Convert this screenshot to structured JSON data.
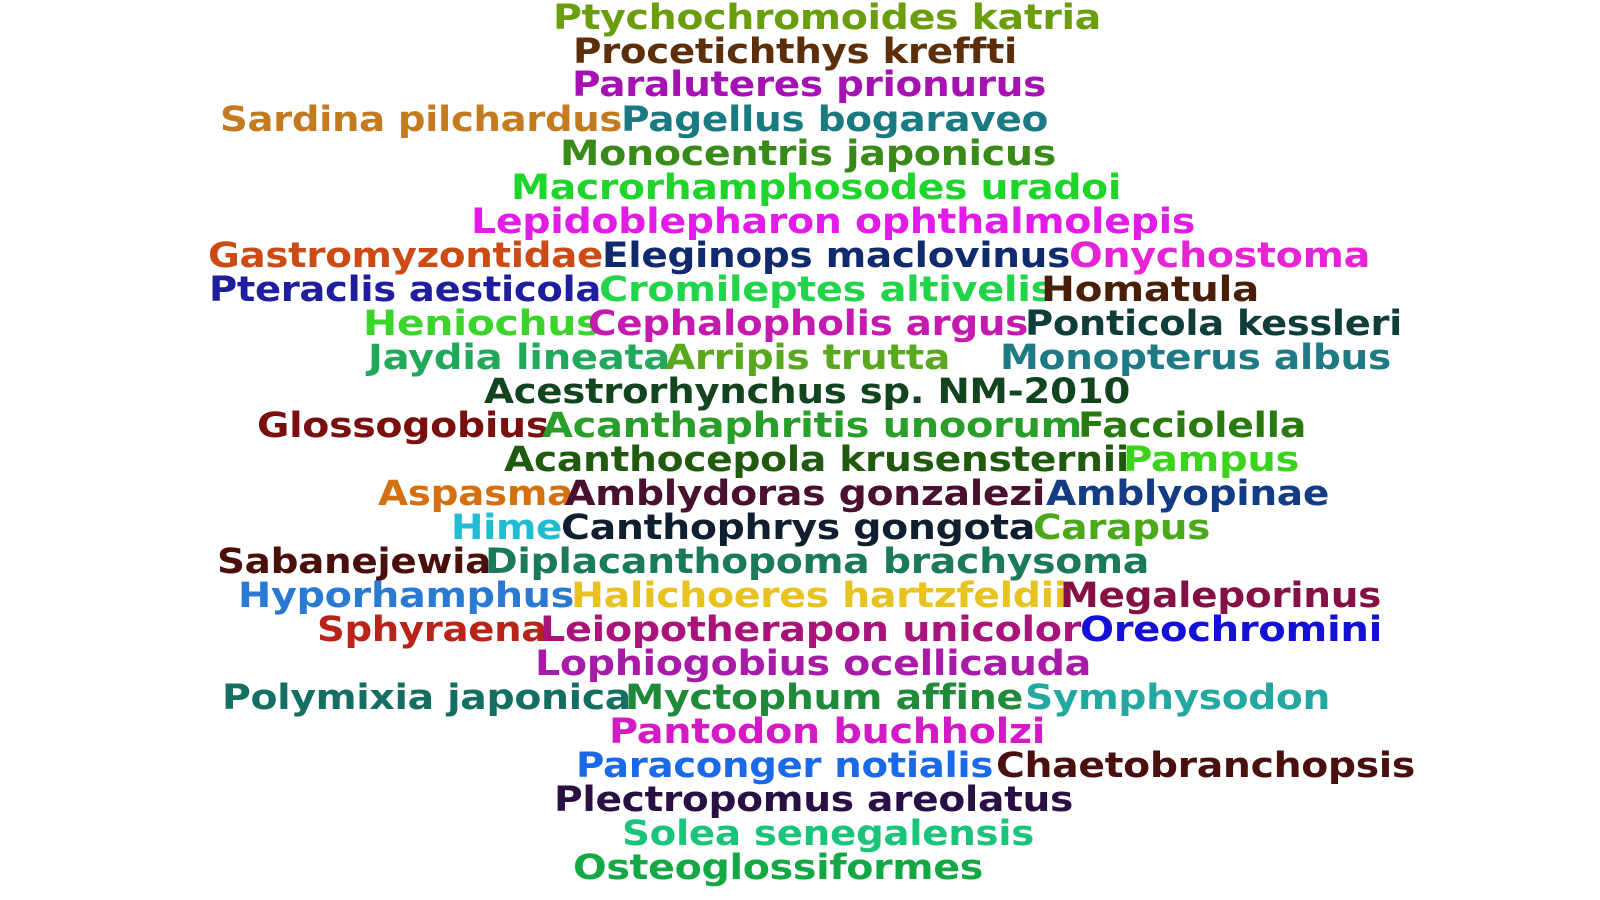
{
  "words": [
    {
      "text": "Ptychochromoides katria",
      "color": "#6b9e0f"
    },
    {
      "text": "Procetichthys kreffti",
      "color": "#5c2e09"
    },
    {
      "text": "Paraluteres prionurus",
      "color": "#a611b3"
    },
    {
      "text": "Sardina pilchardus",
      "color": "#c47a1f"
    },
    {
      "text": "Pagellus bogaraveo",
      "color": "#1a7a82"
    },
    {
      "text": "Monocentris japonicus",
      "color": "#3a8a1a"
    },
    {
      "text": "Macrorhamphosodes uradoi",
      "color": "#1fd42a"
    },
    {
      "text": "Lepidoblepharon ophthalmolepis",
      "color": "#e21be8"
    },
    {
      "text": "Gastromyzontidae",
      "color": "#cc4a14"
    },
    {
      "text": "Eleginops maclovinus",
      "color": "#102a6e"
    },
    {
      "text": "Onychostoma",
      "color": "#e624d6"
    },
    {
      "text": "Pteraclis aesticola",
      "color": "#1e1e9e"
    },
    {
      "text": "Cromileptes altivelis",
      "color": "#22d44a"
    },
    {
      "text": "Homatula",
      "color": "#4a1f0a"
    },
    {
      "text": "Heniochus",
      "color": "#3ad42a"
    },
    {
      "text": "Cephalopholis argus",
      "color": "#c41ab0"
    },
    {
      "text": "Ponticola kessleri",
      "color": "#0f3d3a"
    },
    {
      "text": "Jaydia lineata",
      "color": "#22a85a"
    },
    {
      "text": "Arripis trutta",
      "color": "#5aa81f"
    },
    {
      "text": "Monopterus albus",
      "color": "#1f7a85"
    },
    {
      "text": "Acestrorhynchus sp. NM-2010",
      "color": "#12451f"
    },
    {
      "text": "Glossogobius",
      "color": "#7a0f0f"
    },
    {
      "text": "Acanthaphritis unoorum",
      "color": "#2a9e2a"
    },
    {
      "text": "Facciolella",
      "color": "#2a7a12"
    },
    {
      "text": "Acanthocepola krusensternii",
      "color": "#1f5a0f"
    },
    {
      "text": "Pampus",
      "color": "#3ad41a"
    },
    {
      "text": "Aspasma",
      "color": "#d4700f"
    },
    {
      "text": "Amblydoras gonzalezi",
      "color": "#4a1030"
    },
    {
      "text": "Amblyopinae",
      "color": "#143c85"
    },
    {
      "text": "Hime",
      "color": "#1fbcd4"
    },
    {
      "text": "Canthophrys gongota",
      "color": "#0f1f30"
    },
    {
      "text": "Carapus",
      "color": "#4aa81a"
    },
    {
      "text": "Sabanejewia",
      "color": "#4a0f0a"
    },
    {
      "text": "Diplacanthopoma brachysoma",
      "color": "#1a7a5a"
    },
    {
      "text": "Hyporhamphus",
      "color": "#2a7ad4"
    },
    {
      "text": "Halichoeres hartzfeldii",
      "color": "#e8c21f"
    },
    {
      "text": "Megaleporinus",
      "color": "#851045"
    },
    {
      "text": "Sphyraena",
      "color": "#b8241a"
    },
    {
      "text": "Leiopotherapon unicolor",
      "color": "#a8147a"
    },
    {
      "text": "Oreochromini",
      "color": "#1410d4"
    },
    {
      "text": "Lophiogobius ocellicauda",
      "color": "#a81aa8"
    },
    {
      "text": "Polymixia japonica",
      "color": "#146e62"
    },
    {
      "text": "Myctophum affine",
      "color": "#1f8a3a"
    },
    {
      "text": "Symphysodon",
      "color": "#22a8a0"
    },
    {
      "text": "Pantodon buchholzi",
      "color": "#d41ac4"
    },
    {
      "text": "Paraconger notialis",
      "color": "#1a6ae8"
    },
    {
      "text": "Chaetobranchopsis",
      "color": "#4a0f0f"
    },
    {
      "text": "Plectropomus areolatus",
      "color": "#2a0f45"
    },
    {
      "text": "Solea senegalensis",
      "color": "#1ac47a"
    },
    {
      "text": "Osteoglossiformes",
      "color": "#14a845"
    }
  ]
}
